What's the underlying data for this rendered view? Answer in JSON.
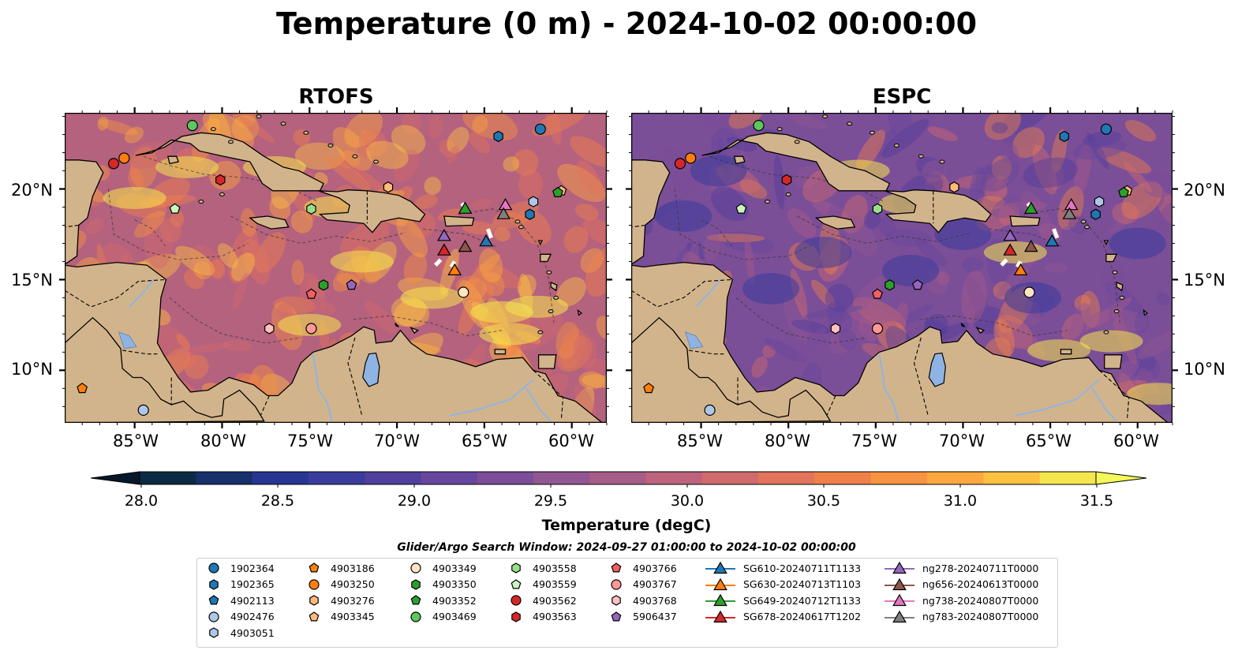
{
  "title": "Temperature (0 m) - 2024-10-02 00:00:00",
  "panels": [
    {
      "title": "RTOFS",
      "model": "rtofs"
    },
    {
      "title": "ESPC",
      "model": "espc"
    }
  ],
  "lat_labels": [
    "20°N",
    "15°N",
    "10°N"
  ],
  "lon_labels": [
    "85°W",
    "80°W",
    "75°W",
    "70°W",
    "65°W",
    "60°W"
  ],
  "colorbar": {
    "title": "Temperature (degC)",
    "tick_labels": [
      "28.0",
      "28.5",
      "29.0",
      "29.5",
      "30.0",
      "30.5",
      "31.0",
      "31.5"
    ],
    "range": [
      28.0,
      31.5
    ],
    "colors": [
      "#0d2a45",
      "#17306a",
      "#273593",
      "#3a3c9c",
      "#503f9c",
      "#67479e",
      "#7c4e99",
      "#925693",
      "#a65c87",
      "#bd647c",
      "#d06b6d",
      "#e2745b",
      "#ef8049",
      "#f79341",
      "#fda83e",
      "#fec141",
      "#f6e64e"
    ],
    "extend": "both"
  },
  "legend": {
    "title": "Glider/Argo Search Window: 2024-09-27 01:00:00 to 2024-10-02 00:00:00",
    "argo": [
      {
        "id": "1902364",
        "color": "#1f77b4",
        "shape": "circle"
      },
      {
        "id": "1902365",
        "color": "#1f77b4",
        "shape": "hexagon"
      },
      {
        "id": "4902113",
        "color": "#1f77b4",
        "shape": "pentagon"
      },
      {
        "id": "4902476",
        "color": "#aec7e8",
        "shape": "circle"
      },
      {
        "id": "4903051",
        "color": "#aec7e8",
        "shape": "hexagon"
      },
      {
        "id": "4903186",
        "color": "#ff7f0e",
        "shape": "pentagon"
      },
      {
        "id": "4903250",
        "color": "#ff7f0e",
        "shape": "circle"
      },
      {
        "id": "4903276",
        "color": "#ffbb78",
        "shape": "hexagon"
      },
      {
        "id": "4903345",
        "color": "#ffbb78",
        "shape": "pentagon"
      },
      {
        "id": "4903349",
        "color": "#ffe4c4",
        "shape": "circle"
      },
      {
        "id": "4903350",
        "color": "#2ca02c",
        "shape": "hexagon"
      },
      {
        "id": "4903352",
        "color": "#2ca02c",
        "shape": "pentagon"
      },
      {
        "id": "4903469",
        "color": "#5cc85c",
        "shape": "circle"
      },
      {
        "id": "4903558",
        "color": "#98df8a",
        "shape": "hexagon"
      },
      {
        "id": "4903559",
        "color": "#ccf5c0",
        "shape": "pentagon"
      },
      {
        "id": "4903562",
        "color": "#d62728",
        "shape": "circle"
      },
      {
        "id": "4903563",
        "color": "#d62728",
        "shape": "hexagon"
      },
      {
        "id": "4903766",
        "color": "#f06060",
        "shape": "pentagon"
      },
      {
        "id": "4903767",
        "color": "#ff9896",
        "shape": "circle"
      },
      {
        "id": "4903768",
        "color": "#ffc0c0",
        "shape": "hexagon"
      },
      {
        "id": "5906437",
        "color": "#9467bd",
        "shape": "pentagon"
      }
    ],
    "gliders": [
      {
        "id": "SG610-20240711T1133",
        "color": "#1f77b4"
      },
      {
        "id": "SG630-20240713T1103",
        "color": "#ff7f0e"
      },
      {
        "id": "SG649-20240712T1133",
        "color": "#2ca02c"
      },
      {
        "id": "SG678-20240617T1202",
        "color": "#d62728"
      },
      {
        "id": "ng278-20240711T0000",
        "color": "#9467bd"
      },
      {
        "id": "ng656-20240613T0000",
        "color": "#8c564b"
      },
      {
        "id": "ng738-20240807T0000",
        "color": "#e377c2"
      },
      {
        "id": "ng783-20240807T0000",
        "color": "#7f7f7f"
      }
    ]
  },
  "map_colors": {
    "land": "#d2b48c",
    "rivers_lakes": "#8fb4e3",
    "rtofs_ocean": "#b4627e",
    "espc_ocean": "#7b4e98"
  }
}
